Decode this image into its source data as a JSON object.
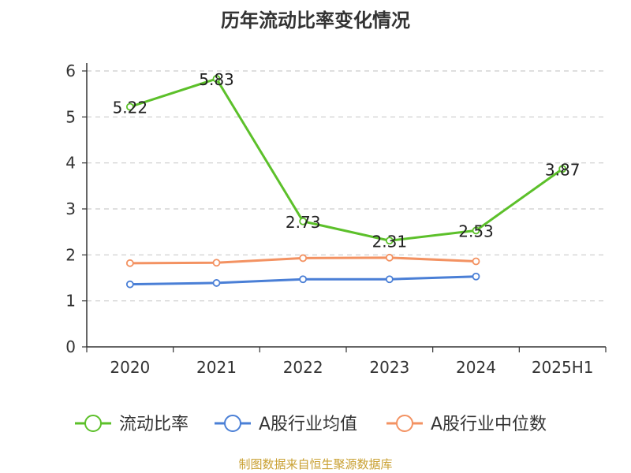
{
  "chart_data": {
    "type": "line",
    "title": "历年流动比率变化情况",
    "categories": [
      "2020",
      "2021",
      "2022",
      "2023",
      "2024",
      "2025H1"
    ],
    "ylim": [
      0,
      6
    ],
    "yticks": [
      0,
      1,
      2,
      3,
      4,
      5,
      6
    ],
    "grid": true,
    "legend_position": "bottom",
    "series": [
      {
        "name": "流动比率",
        "color": "#5cc02a",
        "values": [
          5.22,
          5.83,
          2.73,
          2.31,
          2.53,
          3.87
        ],
        "labels": true
      },
      {
        "name": "A股行业均值",
        "color": "#4a7fd6",
        "values": [
          1.36,
          1.39,
          1.47,
          1.47,
          1.53,
          null
        ],
        "labels": false
      },
      {
        "name": "A股行业中位数",
        "color": "#f39262",
        "values": [
          1.82,
          1.83,
          1.93,
          1.94,
          1.86,
          null
        ],
        "labels": false
      }
    ],
    "source": "制图数据来自恒生聚源数据库"
  }
}
